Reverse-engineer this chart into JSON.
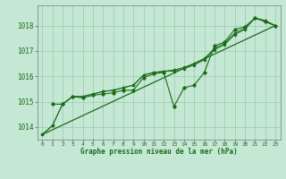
{
  "background_color": "#c5e8d5",
  "grid_color": "#9ecfb0",
  "line_color": "#1a6b1a",
  "title": "Graphe pression niveau de la mer (hPa)",
  "xlim": [
    -0.5,
    23.5
  ],
  "ylim": [
    1013.5,
    1018.8
  ],
  "yticks": [
    1014,
    1015,
    1016,
    1017,
    1018
  ],
  "xticks": [
    0,
    1,
    2,
    3,
    4,
    5,
    6,
    7,
    8,
    9,
    10,
    11,
    12,
    13,
    14,
    15,
    16,
    17,
    18,
    19,
    20,
    21,
    22,
    23
  ],
  "series_straight": {
    "x": [
      0,
      23
    ],
    "y": [
      1013.7,
      1018.0
    ]
  },
  "series_smooth": {
    "x": [
      0,
      1,
      2,
      3,
      4,
      5,
      6,
      7,
      8,
      9,
      10,
      11,
      12,
      13,
      14,
      15,
      16,
      17,
      18,
      19,
      20,
      21,
      22,
      23
    ],
    "y": [
      1013.7,
      1014.05,
      1014.9,
      1015.2,
      1015.2,
      1015.3,
      1015.4,
      1015.45,
      1015.55,
      1015.65,
      1016.05,
      1016.15,
      1016.2,
      1016.2,
      1016.3,
      1016.45,
      1016.65,
      1017.05,
      1017.25,
      1017.65,
      1017.85,
      1018.3,
      1018.2,
      1018.0
    ]
  },
  "series_smooth2": {
    "x": [
      0,
      1,
      2,
      3,
      4,
      5,
      6,
      7,
      8,
      9,
      10,
      11,
      12,
      13,
      14,
      15,
      16,
      17,
      18,
      19,
      20,
      21,
      22,
      23
    ],
    "y": [
      1013.7,
      1014.05,
      1014.9,
      1015.2,
      1015.2,
      1015.3,
      1015.4,
      1015.45,
      1015.55,
      1015.65,
      1016.05,
      1016.15,
      1016.2,
      1016.25,
      1016.35,
      1016.5,
      1016.7,
      1017.1,
      1017.3,
      1017.7,
      1017.9,
      1018.3,
      1018.2,
      1018.0
    ]
  },
  "series_jagged": {
    "x": [
      1,
      2,
      3,
      4,
      5,
      6,
      7,
      8,
      9,
      10,
      11,
      12,
      13,
      14,
      15,
      16,
      17,
      18,
      19,
      20,
      21,
      22,
      23
    ],
    "y": [
      1014.9,
      1014.9,
      1015.2,
      1015.15,
      1015.25,
      1015.3,
      1015.35,
      1015.45,
      1015.45,
      1015.95,
      1016.1,
      1016.15,
      1014.8,
      1015.55,
      1015.65,
      1016.15,
      1017.2,
      1017.35,
      1017.85,
      1017.95,
      1018.3,
      1018.15,
      1018.0
    ]
  }
}
